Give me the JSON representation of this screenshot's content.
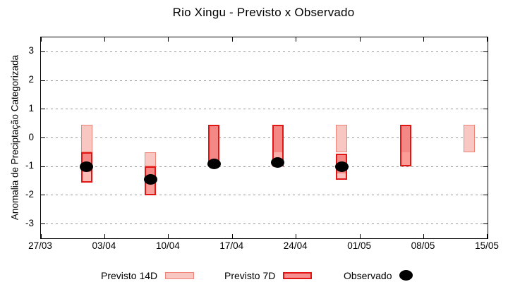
{
  "chart_data": {
    "type": "bar",
    "title": "Rio Xingu - Previsto x Observado",
    "xlabel": "",
    "ylabel": "Anomalia de Preciptação Categorizada",
    "ylim": [
      -3.5,
      3.5
    ],
    "yticks": [
      3,
      2,
      1,
      0,
      -1,
      -2,
      -3
    ],
    "xticks": [
      "27/03",
      "03/04",
      "10/04",
      "17/04",
      "24/04",
      "01/05",
      "08/05",
      "15/05"
    ],
    "x_span_days": 49,
    "grid": "horizontal-dotted",
    "legend": [
      {
        "label": "Previsto 14D",
        "fill": "#f9c7c2",
        "border": "#ef8377"
      },
      {
        "label": "Previsto 7D",
        "fill": "#f69090",
        "border": "#e01715"
      },
      {
        "label": "Observado",
        "color": "#000000"
      }
    ],
    "colors": {
      "box14d_fill": "#f9c7c2",
      "box14d_border": "#ef8377",
      "box7d_fill": "#f58884",
      "box7d_border": "#e01715",
      "observado": "#000000",
      "grid": "#999999",
      "axis": "#000000"
    },
    "bars": [
      {
        "date": "01/04",
        "day": 5,
        "box14d": {
          "top": 0.45,
          "bottom": -0.5
        },
        "box7d": {
          "top": -0.5,
          "bottom": -1.55,
          "salmon_until": -1.2,
          "lower_fill": "#fbbcb6"
        },
        "observado": -1.0
      },
      {
        "date": "08/04",
        "day": 12,
        "box14d": {
          "top": -0.5,
          "bottom": -1.0
        },
        "box7d": {
          "top": -1.0,
          "bottom": -2.0,
          "salmon_until": -1.6,
          "lower_fill": "#fa9e9a"
        },
        "observado": -1.45
      },
      {
        "date": "15/04",
        "day": 19,
        "box14d": null,
        "box7d": {
          "top": 0.45,
          "bottom": -0.9,
          "salmon_until": -0.9,
          "lower_fill": null
        },
        "observado": -0.9
      },
      {
        "date": "22/04",
        "day": 26,
        "box14d": null,
        "box7d": {
          "top": 0.45,
          "bottom": -1.0,
          "salmon_until": -0.5,
          "lower_fill": "#fbb0ab"
        },
        "observado": -0.85
      },
      {
        "date": "29/04",
        "day": 33,
        "box14d": {
          "top": 0.45,
          "bottom": -0.5
        },
        "box7d": {
          "top": -0.55,
          "bottom": -1.45,
          "salmon_until": -1.25,
          "lower_fill": "#fac3be"
        },
        "observado": -1.0
      },
      {
        "date": "06/05",
        "day": 40,
        "box14d": null,
        "box7d": {
          "top": 0.45,
          "bottom": -1.0,
          "salmon_until": -0.5,
          "lower_fill": "#fc9c97"
        },
        "observado": null
      },
      {
        "date": "13/05",
        "day": 47,
        "box14d": {
          "top": 0.45,
          "bottom": -0.5
        },
        "box7d": null,
        "observado": null
      }
    ]
  }
}
